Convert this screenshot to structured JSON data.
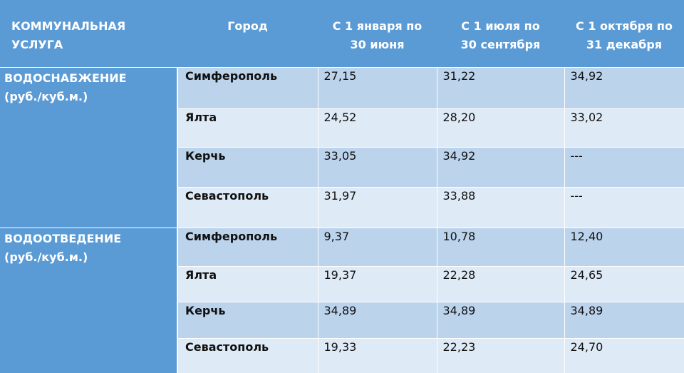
{
  "headers": [
    "КОММУНАЛЬНАЯ УСЛУГА",
    "Город",
    [
      "С 1 января по",
      "30 июня"
    ],
    [
      "С 1 июля по",
      "30 сентября"
    ],
    [
      "С 1 октября по",
      "31 декабря"
    ]
  ],
  "groups": [
    {
      "service": [
        "ВОДОСНАБЖЕНИЕ",
        "(руб./куб.м.)"
      ],
      "rows": [
        {
          "city": "Симферополь",
          "values": [
            "27,15",
            "31,22",
            "34,92"
          ]
        },
        {
          "city": "Ялта",
          "values": [
            "24,52",
            "28,20",
            "33,02"
          ]
        },
        {
          "city": "Керчь",
          "values": [
            "33,05",
            "34,92",
            "---"
          ]
        },
        {
          "city": "Севастополь",
          "values": [
            "31,97",
            "33,88",
            "---"
          ]
        }
      ]
    },
    {
      "service": [
        "ВОДООТВЕДЕНИЕ",
        "(руб./куб.м.)"
      ],
      "rows": [
        {
          "city": "Симферополь",
          "values": [
            "9,37",
            "10,78",
            "12,40"
          ]
        },
        {
          "city": "Ялта",
          "values": [
            "19,37",
            "22,28",
            "24,65"
          ]
        },
        {
          "city": "Керчь",
          "values": [
            "34,89",
            "34,89",
            "34,89"
          ]
        },
        {
          "city": "Севастополь",
          "values": [
            "19,33",
            "22,23",
            "24,70"
          ]
        }
      ]
    }
  ],
  "colors": {
    "header_bg": "#5b9bd5",
    "row_dark": "#bcd3ec",
    "row_light": "#deeaf6"
  }
}
